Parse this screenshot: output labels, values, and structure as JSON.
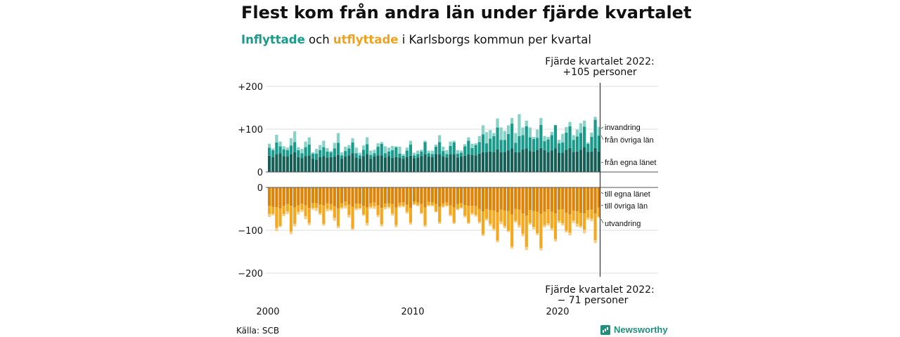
{
  "title": "Flest kom från andra län under fjärde kvartalet",
  "subtitle": {
    "in_word": "Inflyttade",
    "mid": " och ",
    "out_word": "utflyttade",
    "rest": " i Karlsborgs kommun per kvartal"
  },
  "source": "Källa: SCB",
  "brand": "Newsworthy",
  "colors": {
    "in_egna": "#155f56",
    "in_ovriga": "#1a9a8b",
    "in_invandring": "#86d2c7",
    "out_egna": "#db8409",
    "out_ovriga": "#f3a81f",
    "out_utvandring": "#f8cd85"
  },
  "chart_data": {
    "type": "bar",
    "x_start": "2000 Q1",
    "x_end": "2022 Q4",
    "x_ticks": [
      "2000",
      "2010",
      "2020"
    ],
    "y_ticks_top": [
      "+200",
      "+100",
      "0"
    ],
    "y_ticks_bottom": [
      "0",
      "−100",
      "−200"
    ],
    "ylim_top": [
      0,
      200
    ],
    "ylim_bottom": [
      -200,
      0
    ],
    "stacked": true,
    "series_in": [
      {
        "name": "från egna länet",
        "values": [
          38,
          35,
          41,
          44,
          37,
          36,
          41,
          46,
          35,
          32,
          37,
          39,
          31,
          29,
          35,
          37,
          34,
          35,
          36,
          40,
          31,
          36,
          39,
          44,
          34,
          31,
          37,
          42,
          31,
          36,
          39,
          39,
          34,
          37,
          33,
          35,
          34,
          31,
          35,
          38,
          32,
          34,
          37,
          41,
          36,
          35,
          42,
          41,
          36,
          34,
          41,
          42,
          34,
          36,
          38,
          41,
          40,
          39,
          43,
          46,
          46,
          48,
          47,
          53,
          46,
          47,
          50,
          55,
          46,
          46,
          53,
          55,
          49,
          48,
          52,
          56,
          51,
          46,
          50,
          55,
          45,
          45,
          52,
          56,
          47,
          48,
          52,
          58,
          47,
          48,
          56,
          48
        ]
      },
      {
        "name": "från övriga län",
        "values": [
          19,
          16,
          28,
          16,
          16,
          15,
          21,
          24,
          16,
          12,
          21,
          25,
          12,
          14,
          16,
          21,
          14,
          11,
          19,
          28,
          8,
          13,
          16,
          25,
          10,
          8,
          15,
          23,
          9,
          8,
          20,
          27,
          10,
          11,
          18,
          23,
          9,
          7,
          15,
          26,
          7,
          8,
          11,
          29,
          8,
          7,
          17,
          29,
          13,
          8,
          20,
          27,
          9,
          9,
          22,
          32,
          16,
          24,
          27,
          42,
          21,
          30,
          37,
          51,
          29,
          28,
          39,
          58,
          22,
          38,
          33,
          52,
          32,
          29,
          28,
          54,
          21,
          30,
          36,
          54,
          22,
          24,
          40,
          51,
          28,
          35,
          39,
          48,
          19,
          34,
          66,
          37
        ]
      },
      {
        "name": "invandring",
        "values": [
          9,
          4,
          18,
          11,
          7,
          6,
          17,
          25,
          7,
          10,
          13,
          17,
          3,
          11,
          12,
          15,
          8,
          3,
          13,
          23,
          7,
          10,
          8,
          10,
          13,
          6,
          10,
          16,
          10,
          8,
          8,
          4,
          16,
          9,
          10,
          2,
          16,
          4,
          7,
          9,
          6,
          8,
          4,
          3,
          6,
          8,
          5,
          16,
          10,
          9,
          10,
          4,
          8,
          5,
          5,
          8,
          10,
          4,
          14,
          21,
          26,
          20,
          7,
          21,
          29,
          21,
          20,
          13,
          23,
          51,
          18,
          13,
          23,
          5,
          19,
          16,
          12,
          6,
          8,
          1,
          8,
          20,
          13,
          10,
          11,
          16,
          23,
          14,
          3,
          10,
          7,
          20
        ]
      }
    ],
    "series_out": [
      {
        "name": "till egna länet",
        "values": [
          -43,
          -45,
          -46,
          -49,
          -43,
          -39,
          -43,
          -47,
          -42,
          -38,
          -41,
          -48,
          -36,
          -37,
          -40,
          -42,
          -37,
          -39,
          -44,
          -49,
          -37,
          -33,
          -40,
          -45,
          -38,
          -38,
          -43,
          -47,
          -37,
          -35,
          -42,
          -48,
          -38,
          -37,
          -39,
          -47,
          -36,
          -35,
          -40,
          -48,
          -33,
          -35,
          -39,
          -47,
          -34,
          -35,
          -39,
          -45,
          -37,
          -35,
          -42,
          -47,
          -39,
          -36,
          -41,
          -43,
          -43,
          -44,
          -50,
          -56,
          -50,
          -53,
          -54,
          -58,
          -52,
          -54,
          -55,
          -63,
          -50,
          -52,
          -61,
          -66,
          -53,
          -55,
          -57,
          -62,
          -57,
          -51,
          -57,
          -61,
          -52,
          -51,
          -59,
          -63,
          -54,
          -56,
          -59,
          -61,
          -53,
          -52,
          -61,
          -47
        ]
      },
      {
        "name": "till övriga län",
        "values": [
          -19,
          -17,
          -48,
          -41,
          -19,
          -17,
          -60,
          -38,
          -15,
          -14,
          -26,
          -35,
          -12,
          -11,
          -20,
          -43,
          -13,
          -13,
          -27,
          -41,
          -10,
          -10,
          -24,
          -51,
          -11,
          -10,
          -20,
          -36,
          -8,
          -9,
          -22,
          -38,
          -8,
          -8,
          -22,
          -41,
          -7,
          -8,
          -17,
          -34,
          -6,
          -6,
          -20,
          -41,
          -7,
          -7,
          -17,
          -36,
          -7,
          -7,
          -22,
          -35,
          -11,
          -11,
          -25,
          -39,
          -17,
          -20,
          -30,
          -53,
          -23,
          -32,
          -42,
          -66,
          -28,
          -36,
          -46,
          -75,
          -28,
          -36,
          -47,
          -73,
          -30,
          -37,
          -50,
          -79,
          -31,
          -33,
          -38,
          -60,
          -26,
          -33,
          -42,
          -43,
          -23,
          -29,
          -31,
          -38,
          -18,
          -21,
          -62,
          -21
        ]
      },
      {
        "name": "utvandring",
        "values": [
          -7,
          -3,
          -8,
          -2,
          -5,
          -6,
          -6,
          -6,
          -6,
          -5,
          -7,
          -5,
          -4,
          -7,
          -4,
          -4,
          -6,
          -3,
          -7,
          -5,
          -3,
          -6,
          -6,
          -3,
          -4,
          -3,
          -3,
          -6,
          -4,
          -6,
          -5,
          -5,
          -5,
          -4,
          -5,
          -5,
          -4,
          -3,
          -4,
          -5,
          -2,
          -3,
          -3,
          -4,
          -3,
          -2,
          -2,
          -4,
          -3,
          -2,
          -3,
          -3,
          -3,
          -2,
          -4,
          -3,
          -4,
          -4,
          -4,
          -4,
          -4,
          -5,
          -5,
          -4,
          -6,
          -5,
          -3,
          -5,
          -4,
          -6,
          -6,
          -7,
          -4,
          -6,
          -4,
          -6,
          -5,
          -5,
          -5,
          -5,
          -5,
          -5,
          -4,
          -6,
          -6,
          -7,
          -4,
          -8,
          -5,
          -6,
          -7,
          -3
        ]
      }
    ],
    "annotation_top": {
      "line1": "Fjärde kvartalet 2022:",
      "line2": "+105 personer"
    },
    "annotation_bottom": {
      "line1": "Fjärde kvartalet 2022:",
      "line2": "− 71 personer"
    },
    "labels_in": [
      "invandring",
      "från övriga län",
      "från egna länet"
    ],
    "labels_out": [
      "till egna länet",
      "till övriga län",
      "utvandring"
    ],
    "grid": true,
    "legend": "right"
  }
}
